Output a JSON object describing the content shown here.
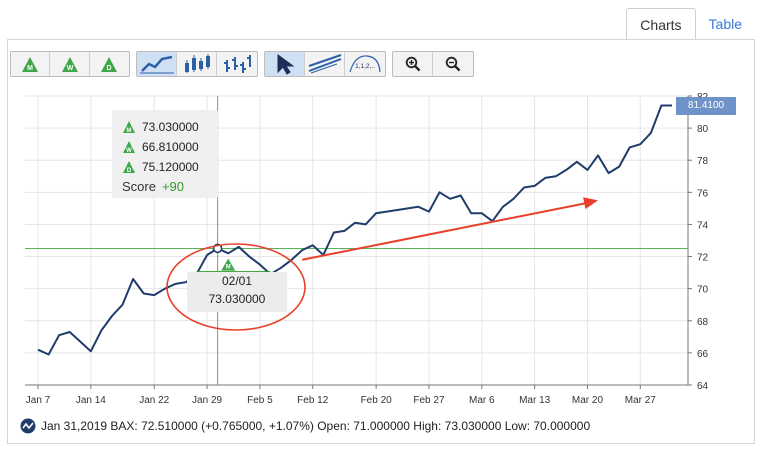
{
  "tabs": [
    {
      "label": "Charts"
    },
    {
      "label": "Table"
    }
  ],
  "toolbar": {
    "period_buttons": [
      {
        "icon": "monthly-triangle-icon",
        "letter": "M"
      },
      {
        "icon": "weekly-triangle-icon",
        "letter": "W"
      },
      {
        "icon": "daily-triangle-icon",
        "letter": "D"
      }
    ],
    "chart_type_buttons": [
      {
        "icon": "line-chart-icon"
      },
      {
        "icon": "bar-chart-icon"
      },
      {
        "icon": "ohlc-chart-icon"
      }
    ],
    "tool_buttons": [
      {
        "icon": "pointer-arrow-icon"
      },
      {
        "icon": "trend-lines-icon"
      },
      {
        "icon": "wave-count-icon",
        "label": "1,1,2,.."
      }
    ],
    "zoom_buttons": [
      {
        "icon": "zoom-in-icon"
      },
      {
        "icon": "zoom-out-icon"
      }
    ]
  },
  "tooltip": {
    "rows": [
      {
        "icon": "monthly-triangle-icon",
        "letter": "M",
        "value": "73.030000"
      },
      {
        "icon": "weekly-triangle-icon",
        "letter": "W",
        "value": "66.810000"
      },
      {
        "icon": "daily-triangle-icon",
        "letter": "D",
        "value": "75.120000"
      }
    ],
    "score_label": "Score",
    "score_value": "+90"
  },
  "date_box": {
    "date": "02/01",
    "value": "73.030000"
  },
  "last_value_label": "81.4100",
  "footer": {
    "text": "Jan 31,2019 BAX: 72.510000 (+0.765000, +1.07%) Open: 71.000000 High: 73.030000 Low: 70.000000"
  },
  "colors": {
    "line": "#1f3c6b",
    "crosshair": "#59b359",
    "support": "#2a9a2a",
    "arrow": "#e8402a",
    "circle": "#e8402a"
  },
  "chart_data": {
    "type": "line",
    "title": "",
    "xlabel": "",
    "ylabel": "",
    "ylim": [
      64,
      82
    ],
    "y_ticks": [
      64,
      66,
      68,
      70,
      72,
      74,
      76,
      78,
      80,
      82
    ],
    "x_ticks": [
      "Jan 7",
      "Jan 14",
      "Jan 22",
      "Jan 29",
      "Feb 5",
      "Feb 12",
      "Feb 20",
      "Feb 27",
      "Mar 6",
      "Mar 13",
      "Mar 20",
      "Mar 27"
    ],
    "grid": true,
    "series": [
      {
        "values": [
          66.2,
          65.9,
          67.1,
          67.3,
          66.7,
          66.1,
          67.4,
          68.3,
          69.0,
          70.6,
          69.7,
          69.6,
          70.0,
          70.3,
          70.4,
          70.9,
          72.1,
          72.51,
          72.2,
          72.6,
          72.0,
          71.5,
          70.9,
          71.3,
          71.8,
          72.4,
          72.7,
          72.1,
          73.5,
          73.6,
          74.1,
          74.0,
          74.7,
          74.8,
          74.9,
          75.0,
          75.1,
          74.8,
          76.0,
          75.6,
          75.8,
          74.7,
          74.7,
          74.2,
          75.1,
          75.6,
          76.3,
          76.4,
          76.9,
          77.0,
          77.4,
          77.9,
          77.4,
          78.3,
          77.2,
          77.6,
          78.8,
          79.0,
          79.7,
          81.41,
          81.41
        ]
      }
    ],
    "x_tick_positions": [
      0,
      5,
      11,
      16,
      21,
      26,
      32,
      37,
      42,
      47,
      52,
      57
    ],
    "annotations": [
      {
        "type": "crosshair",
        "x_index": 17,
        "y": 72.5
      },
      {
        "type": "support-line",
        "from_index": 15,
        "to_index": 22,
        "y": 71.0
      },
      {
        "type": "wave-marker",
        "x_index": 18,
        "letter": "M"
      },
      {
        "type": "trend-arrow",
        "from_index": 25,
        "from_y": 71.8,
        "to_index": 53,
        "to_y": 75.5
      }
    ]
  }
}
